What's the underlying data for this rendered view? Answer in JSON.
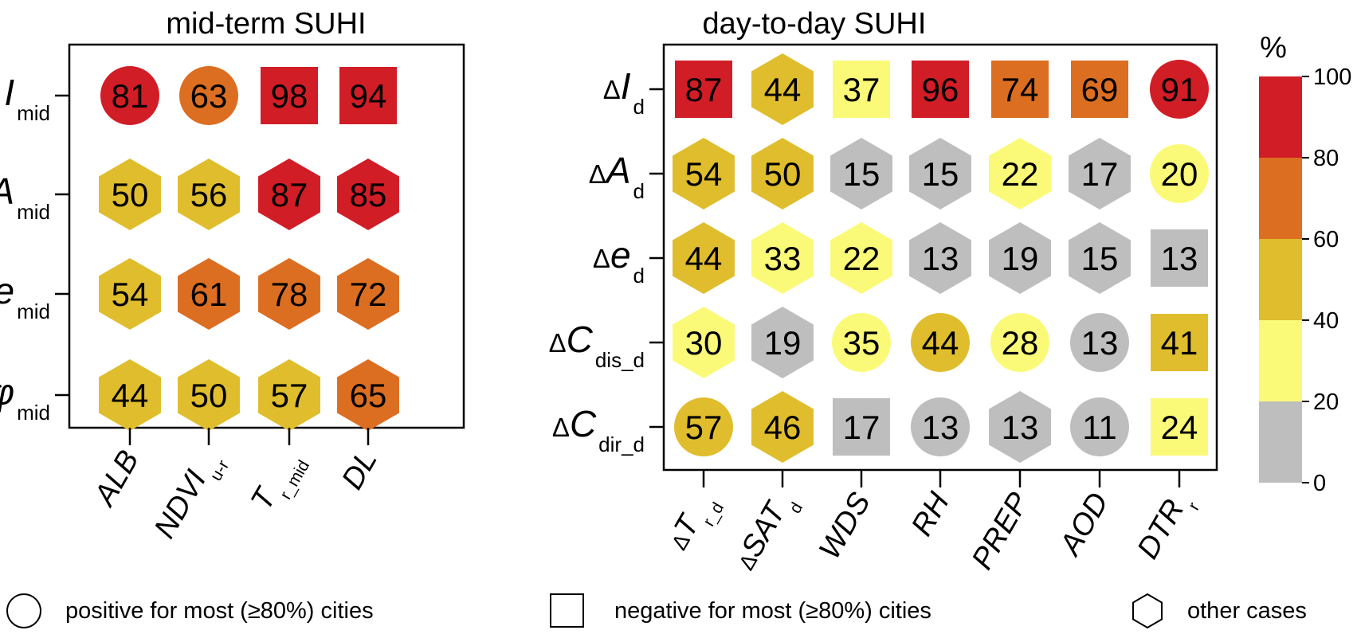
{
  "panels": {
    "left_title": "mid-term SUHI",
    "right_title": "day-to-day SUHI"
  },
  "colorbar": {
    "unit": "%",
    "ticks": [
      "0",
      "20",
      "40",
      "60",
      "80",
      "100"
    ],
    "bins": [
      {
        "from": 0,
        "to": 20,
        "color": "#bebebe"
      },
      {
        "from": 20,
        "to": 40,
        "color": "#fafa78"
      },
      {
        "from": 40,
        "to": 60,
        "color": "#e0bd2d"
      },
      {
        "from": 60,
        "to": 80,
        "color": "#dc6e22"
      },
      {
        "from": 80,
        "to": 100,
        "color": "#d11d26"
      }
    ]
  },
  "legend": {
    "circle_label": "positive for most (≥80%) cities",
    "square_label": "negative for most (≥80%) cities",
    "hexagon_label": "other cases"
  },
  "chart_data": [
    {
      "type": "heatmap",
      "title": "mid-term SUHI",
      "rows": [
        {
          "main": "I",
          "sub": "mid",
          "prefix": ""
        },
        {
          "main": "A",
          "sub": "mid",
          "prefix": ""
        },
        {
          "main": "e",
          "sub": "mid",
          "prefix": ""
        },
        {
          "main": "φ",
          "sub": "mid",
          "prefix": ""
        }
      ],
      "columns": [
        {
          "main": "ALB",
          "sub": "",
          "prefix": ""
        },
        {
          "main": "NDVI",
          "sub": "u-r",
          "prefix": ""
        },
        {
          "main": "T",
          "sub": "r_mid",
          "prefix": ""
        },
        {
          "main": "DL",
          "sub": "",
          "prefix": ""
        }
      ],
      "values": [
        [
          81,
          63,
          98,
          94
        ],
        [
          50,
          56,
          87,
          85
        ],
        [
          54,
          61,
          78,
          72
        ],
        [
          44,
          50,
          57,
          65
        ]
      ],
      "shapes": [
        [
          "circle",
          "circle",
          "square",
          "square"
        ],
        [
          "hexagon",
          "hexagon",
          "hexagon",
          "hexagon"
        ],
        [
          "hexagon",
          "hexagon",
          "hexagon",
          "hexagon"
        ],
        [
          "hexagon",
          "hexagon",
          "hexagon",
          "hexagon"
        ]
      ]
    },
    {
      "type": "heatmap",
      "title": "day-to-day SUHI",
      "rows": [
        {
          "main": "I",
          "sub": "d",
          "prefix": "Δ"
        },
        {
          "main": "A",
          "sub": "d",
          "prefix": "Δ"
        },
        {
          "main": "e",
          "sub": "d",
          "prefix": "Δ"
        },
        {
          "main": "C",
          "sub": "dis_d",
          "prefix": "Δ"
        },
        {
          "main": "C",
          "sub": "dir_d",
          "prefix": "Δ"
        }
      ],
      "columns": [
        {
          "main": "T",
          "sub": "r_d",
          "prefix": "Δ"
        },
        {
          "main": "SAT",
          "sub": "d",
          "prefix": "Δ"
        },
        {
          "main": "WDS",
          "sub": "",
          "prefix": ""
        },
        {
          "main": "RH",
          "sub": "",
          "prefix": ""
        },
        {
          "main": "PREP",
          "sub": "",
          "prefix": ""
        },
        {
          "main": "AOD",
          "sub": "",
          "prefix": ""
        },
        {
          "main": "DTR",
          "sub": "r",
          "prefix": ""
        }
      ],
      "values": [
        [
          87,
          44,
          37,
          96,
          74,
          69,
          91
        ],
        [
          54,
          50,
          15,
          15,
          22,
          17,
          20
        ],
        [
          44,
          33,
          22,
          13,
          19,
          15,
          13
        ],
        [
          30,
          19,
          35,
          44,
          28,
          13,
          41
        ],
        [
          57,
          46,
          17,
          13,
          13,
          11,
          24
        ]
      ],
      "shapes": [
        [
          "square",
          "hexagon",
          "square",
          "square",
          "square",
          "square",
          "circle"
        ],
        [
          "hexagon",
          "hexagon",
          "hexagon",
          "hexagon",
          "hexagon",
          "hexagon",
          "circle"
        ],
        [
          "hexagon",
          "hexagon",
          "hexagon",
          "hexagon",
          "hexagon",
          "hexagon",
          "square"
        ],
        [
          "hexagon",
          "hexagon",
          "circle",
          "circle",
          "circle",
          "circle",
          "square"
        ],
        [
          "circle",
          "hexagon",
          "square",
          "circle",
          "hexagon",
          "circle",
          "square"
        ]
      ]
    }
  ]
}
